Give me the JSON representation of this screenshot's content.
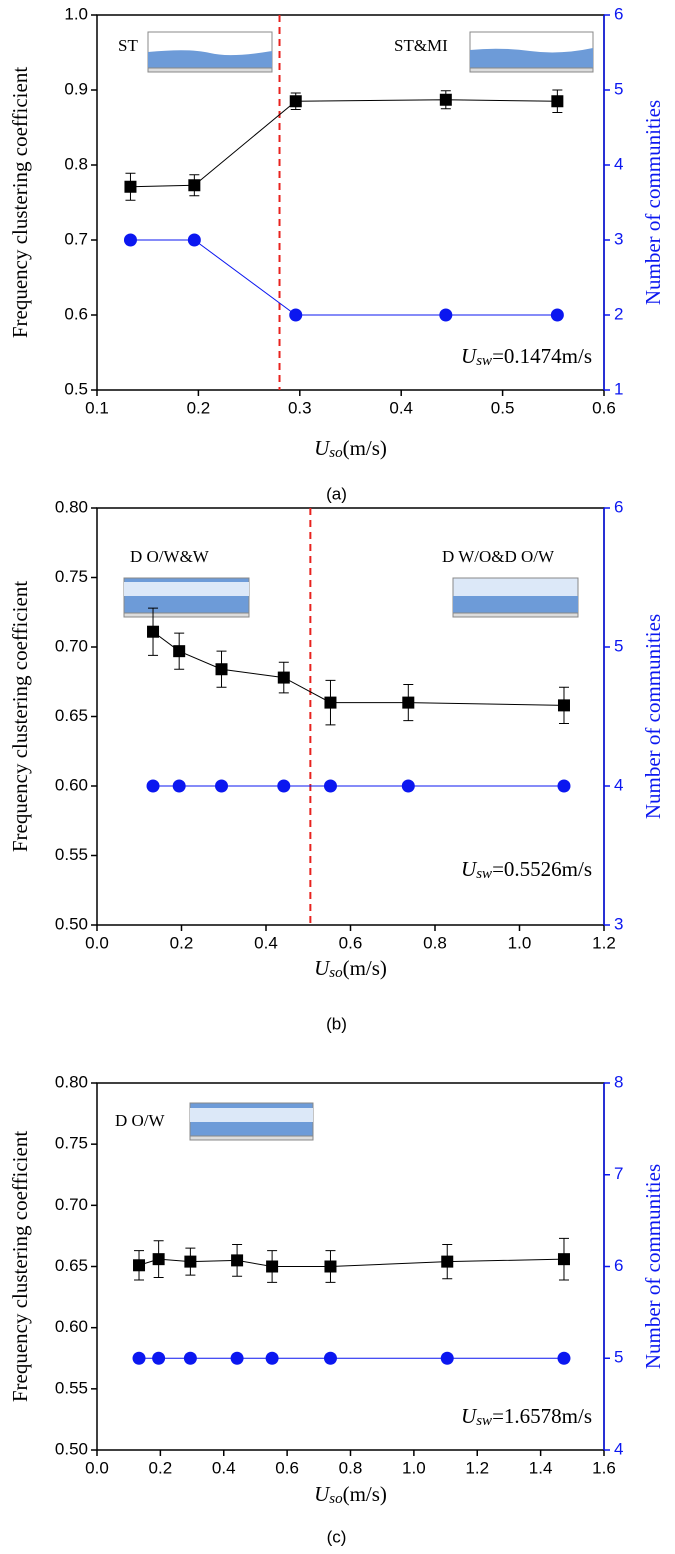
{
  "chart_data": [
    {
      "type": "line",
      "caption": "(a)",
      "ylabel": "Frequency clustering coefficient",
      "y2label": "Number of communities",
      "xlabel": {
        "var": "U",
        "sub": "so",
        "unit": "(m/s)"
      },
      "condition": {
        "var": "U",
        "sub": "sw",
        "text": "=0.1474m/s"
      },
      "annotations": [
        "ST",
        "ST&MI"
      ],
      "xlim": [
        0.1,
        0.6
      ],
      "xticks": [
        0.1,
        0.2,
        0.3,
        0.4,
        0.5,
        0.6
      ],
      "ylim": [
        0.5,
        1.0
      ],
      "yticks": [
        0.5,
        0.6,
        0.7,
        0.8,
        0.9,
        {
          "value": 1,
          "label": "1.0"
        }
      ],
      "y2lim": [
        1,
        6
      ],
      "y2ticks": [
        1,
        2,
        3,
        4,
        5,
        6
      ],
      "vline": {
        "x": 0.28,
        "color": "#e8221e"
      },
      "series": [
        {
          "color": "#000000",
          "marker": "square",
          "x": [
            0.133,
            0.196,
            0.296,
            0.444,
            0.554
          ],
          "values": [
            0.771,
            0.773,
            0.885,
            0.887,
            0.885
          ],
          "errors": [
            0.018,
            0.014,
            0.011,
            0.012,
            0.015
          ]
        },
        {
          "color": "#0b17f0",
          "marker": "circle",
          "axis": "y2",
          "x": [
            0.133,
            0.196,
            0.296,
            0.444,
            0.554
          ],
          "values": [
            3,
            3,
            2,
            2,
            2
          ]
        }
      ]
    },
    {
      "type": "line",
      "caption": "(b)",
      "ylabel": "Frequency clustering coefficient",
      "y2label": "Number of communities",
      "xlabel": {
        "var": "U",
        "sub": "so",
        "unit": "(m/s)"
      },
      "condition": {
        "var": "U",
        "sub": "sw",
        "text": "=0.5526m/s"
      },
      "annotations": [
        "D O/W&W",
        "D W/O&D O/W"
      ],
      "xlim": [
        0,
        1.2
      ],
      "xticks": [
        {
          "value": 0,
          "label": "0.0"
        },
        0.2,
        0.4,
        0.6,
        0.8,
        {
          "value": 1,
          "label": "1.0"
        },
        1.2
      ],
      "ylim": [
        0.5,
        0.8
      ],
      "yticks": [
        {
          "value": 0.5,
          "label": "0.50"
        },
        0.55,
        {
          "value": 0.6,
          "label": "0.60"
        },
        0.65,
        {
          "value": 0.7,
          "label": "0.70"
        },
        0.75,
        {
          "value": 0.8,
          "label": "0.80"
        }
      ],
      "y2lim": [
        3,
        6
      ],
      "y2ticks": [
        3,
        4,
        5,
        6
      ],
      "vline": {
        "x": 0.505,
        "color": "#e8221e"
      },
      "series": [
        {
          "color": "#000000",
          "marker": "square",
          "x": [
            0.1326,
            0.1945,
            0.2947,
            0.4421,
            0.5526,
            0.7368,
            1.1053
          ],
          "values": [
            0.711,
            0.697,
            0.684,
            0.678,
            0.66,
            0.66,
            0.658
          ],
          "errors": [
            0.017,
            0.013,
            0.013,
            0.011,
            0.016,
            0.013,
            0.013
          ]
        },
        {
          "color": "#0b17f0",
          "marker": "circle",
          "axis": "y2",
          "x": [
            0.1326,
            0.1945,
            0.2947,
            0.4421,
            0.5526,
            0.7368,
            1.1053
          ],
          "values": [
            4,
            4,
            4,
            4,
            4,
            4,
            4
          ]
        }
      ]
    },
    {
      "type": "line",
      "caption": "(c)",
      "ylabel": "Frequency clustering coefficient",
      "y2label": "Number of communities",
      "xlabel": {
        "var": "U",
        "sub": "so",
        "unit": "(m/s)"
      },
      "condition": {
        "var": "U",
        "sub": "sw",
        "text": "=1.6578m/s"
      },
      "annotations": [
        "D O/W"
      ],
      "xlim": [
        0,
        1.6
      ],
      "xticks": [
        {
          "value": 0,
          "label": "0.0"
        },
        0.2,
        0.4,
        0.6,
        0.8,
        {
          "value": 1,
          "label": "1.0"
        },
        1.2,
        1.4,
        1.6
      ],
      "ylim": [
        0.5,
        0.8
      ],
      "yticks": [
        {
          "value": 0.5,
          "label": "0.50"
        },
        0.55,
        {
          "value": 0.6,
          "label": "0.60"
        },
        0.65,
        {
          "value": 0.7,
          "label": "0.70"
        },
        0.75,
        {
          "value": 0.8,
          "label": "0.80"
        }
      ],
      "y2lim": [
        4,
        8
      ],
      "y2ticks": [
        4,
        5,
        6,
        7,
        8
      ],
      "series": [
        {
          "color": "#000000",
          "marker": "square",
          "x": [
            0.1326,
            0.1945,
            0.2947,
            0.4421,
            0.5526,
            0.7368,
            1.1053,
            1.4737
          ],
          "values": [
            0.651,
            0.656,
            0.654,
            0.655,
            0.65,
            0.65,
            0.654,
            0.656
          ],
          "errors": [
            0.012,
            0.015,
            0.011,
            0.013,
            0.013,
            0.013,
            0.014,
            0.017
          ]
        },
        {
          "color": "#0b17f0",
          "marker": "circle",
          "axis": "y2",
          "x": [
            0.1326,
            0.1945,
            0.2947,
            0.4421,
            0.5526,
            0.7368,
            1.1053,
            1.4737
          ],
          "values": [
            5,
            5,
            5,
            5,
            5,
            5,
            5,
            5
          ]
        }
      ]
    }
  ]
}
